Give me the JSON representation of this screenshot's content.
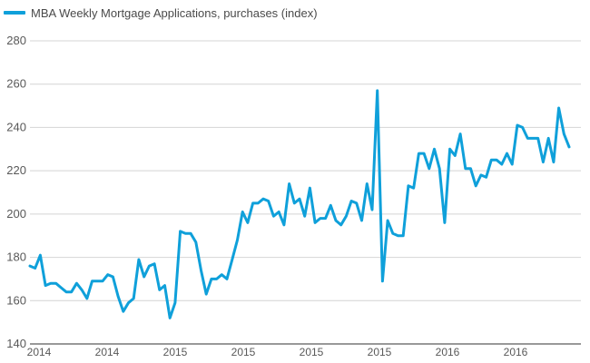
{
  "chart_data": {
    "type": "line",
    "title": "",
    "xlabel": "",
    "ylabel": "",
    "ylim": [
      140,
      280
    ],
    "yticks": [
      140,
      160,
      180,
      200,
      220,
      240,
      260,
      280
    ],
    "grid": true,
    "legend_position": "top-left",
    "x_tick_labels": [
      "2014",
      "2014",
      "2015",
      "2015",
      "2015",
      "2015",
      "2016",
      "2016"
    ],
    "series": [
      {
        "name": "MBA Weekly Mortgage Applications, purchases (index)",
        "color": "#0fa0da",
        "values": [
          176,
          175,
          181,
          167,
          168,
          168,
          166,
          164,
          164,
          168,
          165,
          161,
          169,
          169,
          169,
          172,
          171,
          162,
          155,
          159,
          161,
          179,
          171,
          176,
          177,
          165,
          167,
          152,
          159,
          192,
          191,
          191,
          187,
          174,
          163,
          170,
          170,
          172,
          170,
          179,
          188,
          201,
          196,
          205,
          205,
          207,
          206,
          199,
          201,
          195,
          214,
          205,
          207,
          199,
          212,
          196,
          198,
          198,
          204,
          197,
          195,
          199,
          206,
          205,
          197,
          214,
          202,
          257,
          169,
          197,
          191,
          190,
          190,
          213,
          212,
          228,
          228,
          221,
          230,
          221,
          196,
          230,
          227,
          237,
          221,
          221,
          213,
          218,
          217,
          225,
          225,
          223,
          228,
          223,
          241,
          240,
          235,
          235,
          235,
          224,
          235,
          224,
          249,
          237,
          231
        ]
      }
    ]
  },
  "legend": {
    "label": "MBA Weekly Mortgage Applications, purchases (index)"
  }
}
